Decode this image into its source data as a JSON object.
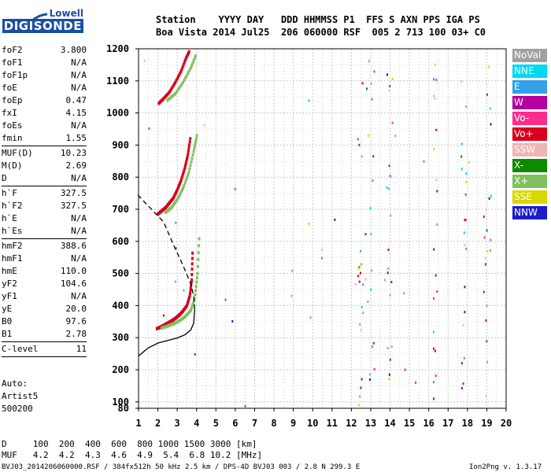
{
  "logo": {
    "line1": "Lowell",
    "line2": "DIGISONDE"
  },
  "header": {
    "labels": "Station    YYYY DAY   DDD HHMMSS P1  FFS S AXN PPS IGA PS",
    "values": "Boa Vista 2014 Jul25  206 060000 RSF  005 2 713 100 03+ C0"
  },
  "params": {
    "group1": [
      {
        "k": "foF2",
        "v": "3.800"
      },
      {
        "k": "foF1",
        "v": "N/A"
      },
      {
        "k": "foF1p",
        "v": "N/A"
      },
      {
        "k": "foE",
        "v": "N/A"
      },
      {
        "k": "foEp",
        "v": "0.47"
      },
      {
        "k": "fxI",
        "v": "4.15"
      },
      {
        "k": "foEs",
        "v": "N/A"
      },
      {
        "k": "fmin",
        "v": "1.55"
      }
    ],
    "group2": [
      {
        "k": "MUF(D)",
        "v": "10.23"
      },
      {
        "k": "M(D)",
        "v": "2.69"
      },
      {
        "k": "D",
        "v": "N/A"
      }
    ],
    "group3": [
      {
        "k": "h`F",
        "v": "327.5"
      },
      {
        "k": "h`F2",
        "v": "327.5"
      },
      {
        "k": "h`E",
        "v": "N/A"
      },
      {
        "k": "h`Es",
        "v": "N/A"
      }
    ],
    "group4": [
      {
        "k": "hmF2",
        "v": "388.6"
      },
      {
        "k": "hmF1",
        "v": "N/A"
      },
      {
        "k": "hmE",
        "v": "110.0"
      },
      {
        "k": "yF2",
        "v": "104.6"
      },
      {
        "k": "yF1",
        "v": "N/A"
      },
      {
        "k": "yE",
        "v": "20.0"
      },
      {
        "k": "B0",
        "v": "97.6"
      },
      {
        "k": "B1",
        "v": "2.78"
      }
    ],
    "group5": [
      {
        "k": "C-level",
        "v": "11"
      }
    ]
  },
  "auto": {
    "line1": "Auto:",
    "line2": "Artist5",
    "line3": "500200"
  },
  "legend": [
    {
      "label": "NoVal",
      "color": "#a0a0a0"
    },
    {
      "label": "NNE",
      "color": "#00d8f0"
    },
    {
      "label": "E",
      "color": "#33a0e8"
    },
    {
      "label": "W",
      "color": "#b4009e"
    },
    {
      "label": "Vo-",
      "color": "#ff2a8c"
    },
    {
      "label": "Vo+",
      "color": "#d8001c"
    },
    {
      "label": "SSW",
      "color": "#f0b4b4"
    },
    {
      "label": "X-",
      "color": "#0e8a00"
    },
    {
      "label": "X+",
      "color": "#80c060"
    },
    {
      "label": "SSE",
      "color": "#d8d800"
    },
    {
      "label": "NNW",
      "color": "#1c1cc8"
    }
  ],
  "footer": {
    "row1": "D     100  200  400  600  800 1000 1500 3000 [km]",
    "row2": "MUF   4.2  4.2  4.3  4.6  4.9  5.4  6.8 10.2 [MHz]",
    "file": "BVJ03_2014206060000.RSF / 384fx512h 50 kHz 2.5 km / DPS-4D BVJ03 003 / 2.8 N 299.3 E",
    "version": "Ion2Png v. 1.3.17"
  },
  "chart_data": {
    "type": "scatter",
    "title": "",
    "xlabel": "",
    "ylabel": "",
    "xlim": [
      1,
      20
    ],
    "ylim": [
      80,
      1200
    ],
    "x_ticks": [
      1,
      2,
      3,
      4,
      5,
      6,
      7,
      8,
      9,
      10,
      11,
      12,
      13,
      14,
      15,
      16,
      17,
      18,
      19,
      20
    ],
    "y_ticks": [
      80,
      100,
      200,
      300,
      400,
      500,
      600,
      700,
      800,
      900,
      1000,
      1100,
      1200
    ],
    "grid": true,
    "series": [
      {
        "name": "Vo+",
        "color": "#d8001c",
        "x": [
          1.95,
          2.1,
          2.3,
          2.5,
          2.7,
          2.9,
          3.1,
          3.3,
          3.5,
          3.65,
          3.75,
          3.8
        ],
        "y": [
          328,
          332,
          338,
          345,
          352,
          360,
          370,
          383,
          400,
          430,
          480,
          580
        ]
      },
      {
        "name": "X+",
        "color": "#80c060",
        "x": [
          2.2,
          2.5,
          2.8,
          3.1,
          3.4,
          3.7,
          3.9,
          4.05,
          4.15
        ],
        "y": [
          330,
          336,
          343,
          352,
          365,
          385,
          420,
          500,
          630
        ]
      },
      {
        "name": "Vo+",
        "color": "#d8001c",
        "x": [
          2.0,
          2.2,
          2.4,
          2.6,
          2.8,
          3.0,
          3.2,
          3.4,
          3.55,
          3.7
        ],
        "y": [
          685,
          695,
          705,
          720,
          735,
          760,
          790,
          830,
          870,
          930
        ]
      },
      {
        "name": "X+",
        "color": "#80c060",
        "x": [
          2.4,
          2.7,
          3.0,
          3.3,
          3.6,
          3.85,
          4.05
        ],
        "y": [
          690,
          705,
          730,
          765,
          815,
          880,
          940
        ]
      },
      {
        "name": "Vo+",
        "color": "#d8001c",
        "x": [
          2.05,
          2.3,
          2.6,
          2.9,
          3.2,
          3.45,
          3.65
        ],
        "y": [
          1030,
          1045,
          1065,
          1095,
          1130,
          1170,
          1195
        ]
      },
      {
        "name": "X+",
        "color": "#80c060",
        "x": [
          2.5,
          2.9,
          3.3,
          3.7,
          4.0
        ],
        "y": [
          1040,
          1060,
          1095,
          1140,
          1185
        ]
      }
    ],
    "profile": {
      "x": [
        1.0,
        1.5,
        2.0,
        2.5,
        3.0,
        3.4,
        3.7,
        3.85,
        3.9,
        3.85,
        3.7,
        3.3,
        2.8,
        2.3
      ],
      "y": [
        243,
        268,
        283,
        291,
        299,
        309,
        324,
        345,
        389,
        430,
        468,
        525,
        590,
        660
      ]
    }
  }
}
